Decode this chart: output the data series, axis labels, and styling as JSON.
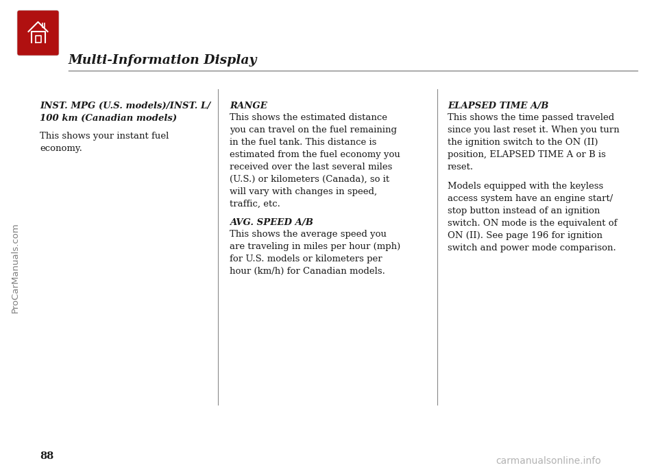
{
  "bg_color": "#ffffff",
  "title": "Multi-Information Display",
  "title_fontsize": 13.5,
  "page_number": "88",
  "col1_heading": "INST. MPG (U.S. models)/INST. L/\n100 km (Canadian models)",
  "col1_body": "This shows your instant fuel\neconomy.",
  "col2_heading": "RANGE",
  "col2_body1": "This shows the estimated distance\nyou can travel on the fuel remaining\nin the fuel tank. This distance is\nestimated from the fuel economy you\nreceived over the last several miles\n(U.S.) or kilometers (Canada), so it\nwill vary with changes in speed,\ntraffic, etc.",
  "col2_heading2": "AVG. SPEED A/B",
  "col2_body2": "This shows the average speed you\nare traveling in miles per hour (mph)\nfor U.S. models or kilometers per\nhour (km/h) for Canadian models.",
  "col3_heading": "ELAPSED TIME A/B",
  "col3_body1": "This shows the time passed traveled\nsince you last reset it. When you turn\nthe ignition switch to the ON (II)\nposition, ELAPSED TIME A or B is\nreset.",
  "col3_body2": "Models equipped with the keyless\naccess system have an engine start/\nstop button instead of an ignition\nswitch. ON mode is the equivalent of\nON (II). See page 196 for ignition\nswitch and power mode comparison.",
  "watermark_left": "ProCarManuals.com",
  "watermark_right": "carmanualsonline.info",
  "text_color": "#1a1a1a",
  "body_fontsize": 9.5,
  "heading_fontsize": 9.5,
  "icon_red": "#b01010",
  "icon_dark_red": "#700000",
  "line_color": "#888888"
}
